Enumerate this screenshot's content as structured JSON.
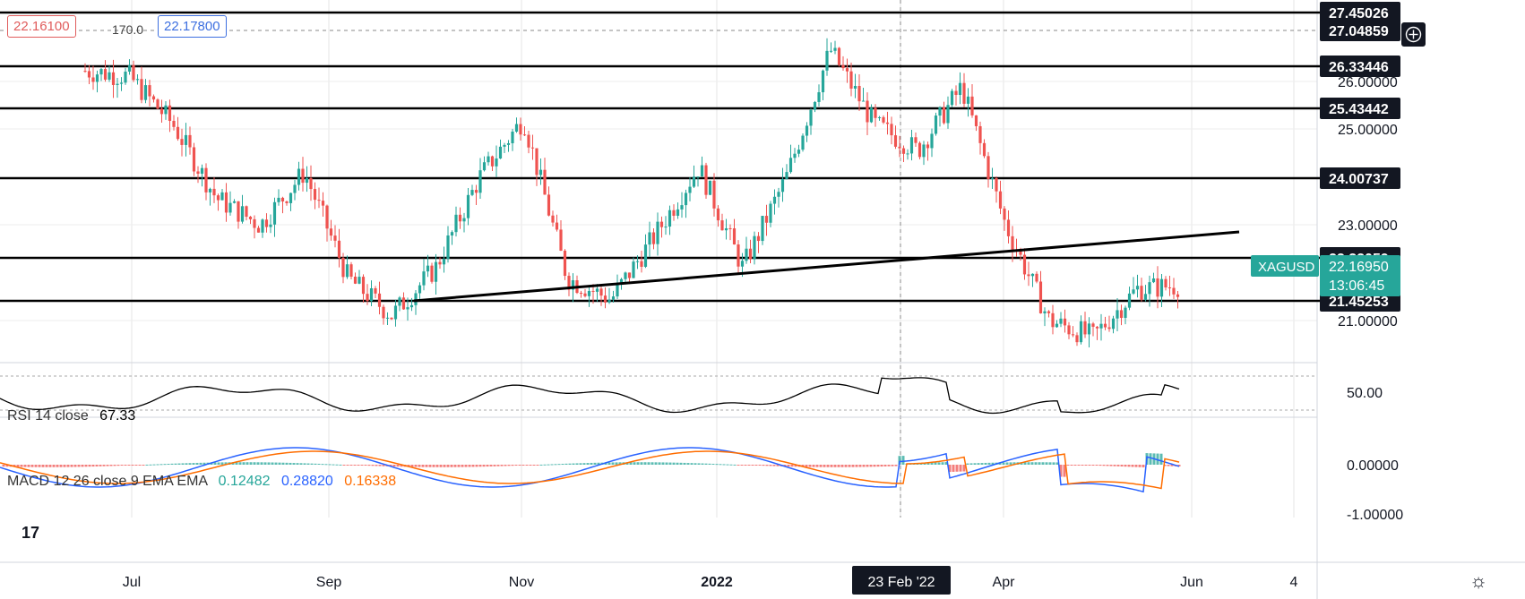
{
  "toolbar": {
    "sell_price": "22.16100",
    "spread": "170.0",
    "buy_price": "22.17800"
  },
  "symbol": "XAGUSD",
  "last_price": "22.16950",
  "countdown": "13:06:45",
  "crosshair_date": "23 Feb '22",
  "colors": {
    "up": "#26a69a",
    "down": "#ef5350",
    "label_bg": "#131722",
    "symbol_bg": "#26a69a",
    "rsi_line": "#000000",
    "macd_line": "#2962ff",
    "signal_line": "#ff6d00"
  },
  "indicators": {
    "rsi": {
      "label": "RSI 14 close",
      "value": "67.33",
      "axis_tick": "50.00"
    },
    "macd": {
      "label": "MACD 12 26 close 9 EMA EMA",
      "histogram": "0.12482",
      "macd": "0.28820",
      "signal": "0.16338",
      "axis_ticks": [
        "0.00000",
        "-1.00000"
      ]
    }
  },
  "chart_data": {
    "type": "candlestick",
    "instrument": "XAGUSD",
    "x_ticks": [
      "Jul",
      "Sep",
      "Nov",
      "2022",
      "Apr",
      "Jun",
      "4"
    ],
    "y_ticks": [
      "26.00000",
      "25.00000",
      "23.00000",
      "21.00000"
    ],
    "ylim": [
      20.8,
      27.5
    ],
    "horizontal_levels": [
      "27.45026",
      "27.04859",
      "26.33446",
      "25.43442",
      "24.00737",
      "22.32059",
      "21.45253"
    ],
    "trendline": {
      "from": [
        "Oct 2021",
        21.45
      ],
      "to": [
        "Jun 2022",
        22.68
      ]
    },
    "close_path": [
      {
        "date": "Jun 2021",
        "close": 26.2
      },
      {
        "date": "Jul 2021",
        "close": 26.1
      },
      {
        "date": "Jul 2021",
        "close": 25.2
      },
      {
        "date": "Aug 2021",
        "close": 23.8
      },
      {
        "date": "Aug 2021",
        "close": 23.3
      },
      {
        "date": "Sep 2021",
        "close": 24.3
      },
      {
        "date": "Sep 2021",
        "close": 22.3
      },
      {
        "date": "Oct 2021",
        "close": 21.6
      },
      {
        "date": "Oct 2021",
        "close": 22.5
      },
      {
        "date": "Nov 2021",
        "close": 24.2
      },
      {
        "date": "Nov 2021",
        "close": 25.3
      },
      {
        "date": "Dec 2021",
        "close": 22.3
      },
      {
        "date": "Dec 2021",
        "close": 21.9
      },
      {
        "date": "Jan 2022",
        "close": 23.1
      },
      {
        "date": "Jan 2022",
        "close": 24.4
      },
      {
        "date": "Feb 2022",
        "close": 22.5
      },
      {
        "date": "Feb 2022",
        "close": 24.2
      },
      {
        "date": "Mar 2022",
        "close": 26.6
      },
      {
        "date": "Mar 2022",
        "close": 25.2
      },
      {
        "date": "Apr 2022",
        "close": 24.7
      },
      {
        "date": "Apr 2022",
        "close": 25.9
      },
      {
        "date": "Apr 2022",
        "close": 23.3
      },
      {
        "date": "May 2022",
        "close": 21.5
      },
      {
        "date": "May 2022",
        "close": 21.2
      },
      {
        "date": "May 2022",
        "close": 22.1
      },
      {
        "date": "Jun 2022",
        "close": 22.17
      }
    ]
  }
}
